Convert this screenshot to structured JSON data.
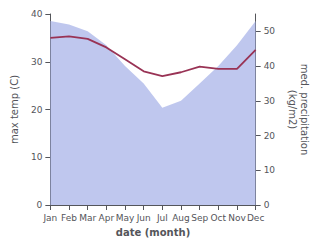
{
  "chart_data": {
    "type": "line",
    "xlabel": "date (month)",
    "ylabel": "max temp (C)",
    "y2label": "med. precipitation\n(kg/m2)",
    "categories": [
      "Jan",
      "Feb",
      "Mar",
      "Apr",
      "May",
      "Jun",
      "Jul",
      "Aug",
      "Sep",
      "Oct",
      "Nov",
      "Dec"
    ],
    "series": [
      {
        "type": "line",
        "color": "#993355",
        "values": [
          35.0,
          35.3,
          34.8,
          33.0,
          30.5,
          28.0,
          27.0,
          27.8,
          29.0,
          28.5,
          28.5,
          32.5
        ]
      },
      {
        "type": "area",
        "axis": "y2",
        "color": "#aab4e8",
        "values": [
          53,
          52,
          50,
          46,
          40,
          35,
          28,
          30,
          35,
          40,
          46,
          53
        ]
      }
    ],
    "ylim": [
      0,
      40
    ],
    "yticks": [
      0,
      10,
      20,
      30,
      40
    ],
    "y2lim": [
      0,
      55
    ],
    "y2ticks": [
      0,
      10,
      20,
      30,
      40,
      50
    ],
    "grid": false
  }
}
